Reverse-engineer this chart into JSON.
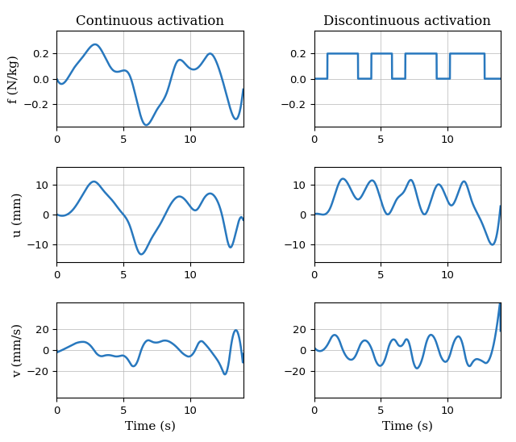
{
  "line_color": "#2878BE",
  "line_width": 1.8,
  "background_color": "#ffffff",
  "grid_color": "#b5b5b5",
  "title_left": "Continuous activation",
  "title_right": "Discontinuous activation",
  "xlabel": "Time (s)",
  "ylabels": [
    "f (N/kg)",
    "u (mm)",
    "v (mm/s)"
  ],
  "ylims_f": [
    -0.38,
    0.38
  ],
  "ylims_u": [
    -16,
    16
  ],
  "ylims_v": [
    -45,
    45
  ],
  "yticks_f": [
    -0.2,
    0,
    0.2
  ],
  "yticks_u": [
    -10,
    0,
    10
  ],
  "yticks_v": [
    -20,
    0,
    20
  ],
  "xlim": [
    0,
    14
  ],
  "xticks": [
    0,
    5,
    10
  ],
  "figsize": [
    6.4,
    5.48
  ],
  "dpi": 100,
  "f_cont_knots": [
    0,
    0.8,
    1.2,
    2.0,
    3.0,
    4.2,
    4.8,
    5.5,
    6.5,
    7.5,
    8.3,
    9.0,
    9.8,
    10.5,
    11.0,
    11.5,
    12.0,
    12.8,
    13.5,
    14.0
  ],
  "f_cont_vals": [
    0,
    0.0,
    0.07,
    0.18,
    0.27,
    0.07,
    0.06,
    0.02,
    -0.35,
    -0.25,
    -0.1,
    0.13,
    0.1,
    0.08,
    0.14,
    0.2,
    0.13,
    -0.15,
    -0.32,
    -0.08
  ],
  "u_cont_knots": [
    0,
    0.8,
    1.2,
    2.0,
    2.8,
    3.5,
    4.2,
    4.8,
    5.5,
    6.2,
    7.0,
    7.8,
    8.5,
    9.2,
    9.8,
    10.5,
    11.0,
    11.5,
    12.0,
    12.5,
    13.0,
    13.5,
    14.0
  ],
  "u_cont_vals": [
    0,
    0.0,
    1.5,
    7.0,
    11.0,
    8.0,
    4.5,
    1.0,
    -4.0,
    -13.0,
    -9.0,
    -3.0,
    3.0,
    6.0,
    4.0,
    1.5,
    5.0,
    7.0,
    5.0,
    -2.0,
    -11.0,
    -5.0,
    -2.0
  ],
  "u_disc_knots": [
    0,
    0.8,
    1.2,
    2.0,
    2.8,
    3.3,
    3.8,
    4.5,
    5.0,
    5.5,
    6.2,
    6.8,
    7.3,
    7.8,
    8.3,
    8.8,
    9.3,
    9.8,
    10.3,
    10.8,
    11.3,
    11.8,
    12.3,
    12.8,
    13.3,
    14.0
  ],
  "u_disc_vals": [
    0,
    0.0,
    2.0,
    11.5,
    8.0,
    5.0,
    8.0,
    11.0,
    5.0,
    0.0,
    5.0,
    8.0,
    11.5,
    5.0,
    0.0,
    5.0,
    10.0,
    7.0,
    3.0,
    7.0,
    11.0,
    5.0,
    0.0,
    -5.0,
    -10.0,
    3.0
  ],
  "f_disc_on_periods": [
    [
      1.0,
      3.3
    ],
    [
      4.3,
      5.85
    ],
    [
      6.85,
      9.2
    ],
    [
      10.2,
      12.8
    ]
  ]
}
